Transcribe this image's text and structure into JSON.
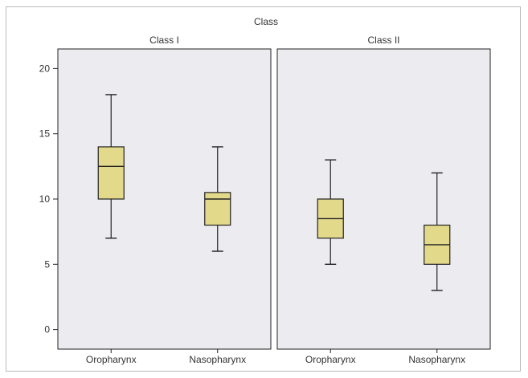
{
  "chart_data": {
    "type": "box",
    "title": "Class",
    "ylim": [
      -1.5,
      21.5
    ],
    "yticks": [
      0,
      5,
      10,
      15,
      20
    ],
    "facets": [
      {
        "label": "Class I",
        "categories": [
          "Oropharynx",
          "Nasopharynx"
        ],
        "boxes": [
          {
            "min": 7,
            "q1": 10,
            "median": 12.5,
            "q3": 14,
            "max": 18
          },
          {
            "min": 6,
            "q1": 8,
            "median": 10,
            "q3": 10.5,
            "max": 14
          }
        ]
      },
      {
        "label": "Class II",
        "categories": [
          "Oropharynx",
          "Nasopharynx"
        ],
        "boxes": [
          {
            "min": 5,
            "q1": 7,
            "median": 8.5,
            "q3": 10,
            "max": 13
          },
          {
            "min": 3,
            "q1": 5,
            "median": 6.5,
            "q3": 8,
            "max": 12
          }
        ]
      }
    ],
    "colors": {
      "box_fill": "#e3d98b",
      "box_stroke": "#222222",
      "panel_bg": "#ececf0",
      "panel_border": "#222222"
    }
  }
}
